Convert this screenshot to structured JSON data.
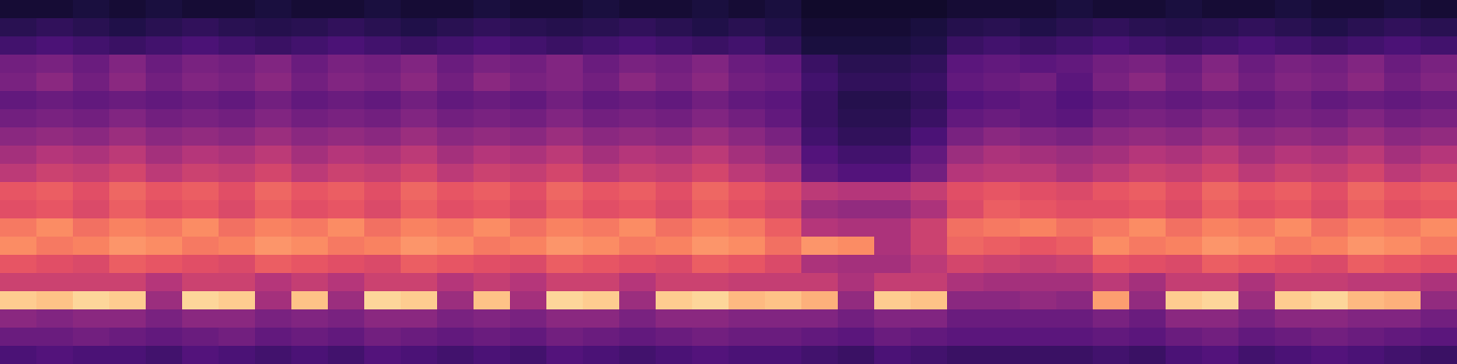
{
  "chart_data": {
    "type": "heatmap",
    "tick_labels": false,
    "value_range": [
      0,
      100
    ],
    "cells": [
      [
        10,
        10,
        12,
        10,
        12,
        10,
        10,
        12,
        10,
        10,
        12,
        10,
        10,
        12,
        10,
        10,
        12,
        10,
        10,
        12,
        10,
        12,
        8,
        8,
        8,
        8,
        10,
        10,
        10,
        12,
        10,
        10,
        12,
        10,
        10,
        12,
        10,
        10,
        12,
        10
      ],
      [
        16,
        18,
        16,
        14,
        16,
        18,
        16,
        15,
        16,
        18,
        16,
        14,
        16,
        18,
        16,
        15,
        16,
        18,
        16,
        14,
        16,
        14,
        10,
        10,
        10,
        12,
        15,
        16,
        14,
        16,
        18,
        16,
        15,
        16,
        18,
        16,
        14,
        16,
        18,
        16
      ],
      [
        22,
        24,
        22,
        20,
        22,
        24,
        22,
        20,
        22,
        24,
        22,
        20,
        22,
        24,
        22,
        20,
        22,
        24,
        22,
        20,
        22,
        18,
        12,
        12,
        12,
        14,
        20,
        22,
        20,
        22,
        24,
        22,
        20,
        22,
        24,
        22,
        20,
        22,
        24,
        22
      ],
      [
        34,
        36,
        32,
        38,
        32,
        36,
        34,
        38,
        32,
        36,
        34,
        38,
        32,
        36,
        34,
        38,
        32,
        36,
        34,
        38,
        32,
        30,
        20,
        16,
        16,
        18,
        28,
        30,
        28,
        30,
        34,
        36,
        32,
        38,
        32,
        36,
        34,
        38,
        32,
        36
      ],
      [
        36,
        40,
        34,
        40,
        34,
        38,
        36,
        40,
        34,
        38,
        36,
        40,
        34,
        40,
        36,
        38,
        34,
        40,
        36,
        40,
        34,
        32,
        22,
        18,
        18,
        20,
        30,
        32,
        34,
        28,
        36,
        40,
        34,
        40,
        34,
        38,
        36,
        40,
        34,
        38
      ],
      [
        30,
        32,
        30,
        32,
        30,
        32,
        30,
        34,
        30,
        32,
        30,
        34,
        30,
        32,
        30,
        34,
        30,
        32,
        30,
        34,
        30,
        28,
        20,
        15,
        15,
        18,
        26,
        28,
        30,
        26,
        30,
        32,
        30,
        32,
        30,
        34,
        30,
        32,
        30,
        32
      ],
      [
        34,
        36,
        34,
        38,
        34,
        36,
        34,
        38,
        34,
        36,
        34,
        38,
        34,
        36,
        34,
        38,
        34,
        36,
        34,
        38,
        34,
        30,
        20,
        16,
        16,
        20,
        30,
        32,
        30,
        28,
        34,
        36,
        34,
        38,
        34,
        36,
        34,
        38,
        34,
        36
      ],
      [
        40,
        42,
        40,
        44,
        40,
        42,
        40,
        44,
        40,
        42,
        40,
        44,
        40,
        42,
        40,
        44,
        40,
        42,
        40,
        44,
        40,
        36,
        22,
        18,
        18,
        24,
        36,
        40,
        38,
        36,
        40,
        42,
        40,
        44,
        40,
        42,
        40,
        44,
        40,
        42
      ],
      [
        46,
        50,
        48,
        52,
        46,
        50,
        48,
        52,
        46,
        50,
        48,
        52,
        46,
        50,
        48,
        52,
        46,
        50,
        48,
        52,
        46,
        42,
        26,
        22,
        22,
        30,
        44,
        48,
        46,
        44,
        46,
        50,
        48,
        52,
        46,
        50,
        48,
        52,
        46,
        50
      ],
      [
        52,
        56,
        54,
        58,
        52,
        56,
        54,
        58,
        52,
        56,
        54,
        58,
        52,
        56,
        54,
        58,
        52,
        56,
        54,
        58,
        52,
        48,
        30,
        26,
        26,
        34,
        50,
        52,
        52,
        48,
        52,
        56,
        54,
        58,
        52,
        56,
        54,
        58,
        52,
        56
      ],
      [
        64,
        66,
        62,
        68,
        64,
        66,
        62,
        68,
        64,
        66,
        62,
        68,
        64,
        66,
        62,
        68,
        64,
        66,
        62,
        68,
        64,
        60,
        52,
        50,
        50,
        54,
        62,
        64,
        62,
        60,
        64,
        66,
        62,
        68,
        64,
        66,
        62,
        68,
        64,
        66
      ],
      [
        62,
        64,
        60,
        66,
        62,
        64,
        60,
        66,
        62,
        64,
        60,
        66,
        62,
        64,
        60,
        66,
        62,
        64,
        60,
        66,
        62,
        58,
        44,
        42,
        42,
        48,
        60,
        66,
        64,
        62,
        62,
        64,
        60,
        66,
        62,
        64,
        60,
        66,
        62,
        64
      ],
      [
        72,
        76,
        70,
        74,
        72,
        76,
        70,
        74,
        72,
        76,
        70,
        74,
        72,
        76,
        70,
        74,
        72,
        76,
        70,
        74,
        72,
        66,
        50,
        48,
        48,
        56,
        70,
        72,
        74,
        70,
        72,
        76,
        70,
        74,
        72,
        76,
        70,
        74,
        72,
        76
      ],
      [
        76,
        72,
        74,
        78,
        76,
        72,
        74,
        78,
        76,
        72,
        74,
        78,
        76,
        72,
        74,
        78,
        76,
        72,
        74,
        78,
        76,
        70,
        78,
        76,
        48,
        56,
        68,
        66,
        64,
        66,
        76,
        72,
        74,
        78,
        76,
        72,
        74,
        78,
        76,
        72
      ],
      [
        64,
        62,
        60,
        66,
        64,
        62,
        60,
        66,
        64,
        62,
        60,
        66,
        64,
        62,
        60,
        66,
        64,
        62,
        60,
        66,
        64,
        60,
        48,
        46,
        46,
        52,
        58,
        56,
        54,
        56,
        64,
        62,
        60,
        66,
        64,
        62,
        60,
        66,
        64,
        62
      ],
      [
        56,
        56,
        56,
        56,
        50,
        56,
        56,
        50,
        54,
        50,
        56,
        56,
        50,
        54,
        50,
        56,
        56,
        50,
        56,
        56,
        54,
        54,
        54,
        48,
        54,
        54,
        48,
        46,
        46,
        46,
        52,
        46,
        54,
        54,
        48,
        54,
        54,
        52,
        52,
        48
      ],
      [
        90,
        88,
        92,
        90,
        44,
        92,
        90,
        46,
        88,
        44,
        92,
        90,
        44,
        88,
        46,
        92,
        90,
        44,
        90,
        92,
        86,
        88,
        84,
        42,
        90,
        88,
        40,
        40,
        42,
        40,
        80,
        42,
        90,
        92,
        44,
        90,
        92,
        86,
        84,
        42
      ],
      [
        40,
        38,
        40,
        40,
        36,
        40,
        40,
        36,
        38,
        36,
        40,
        40,
        36,
        38,
        36,
        40,
        40,
        36,
        40,
        40,
        38,
        38,
        38,
        34,
        38,
        38,
        32,
        32,
        32,
        32,
        36,
        32,
        40,
        40,
        36,
        40,
        40,
        38,
        38,
        34
      ],
      [
        32,
        32,
        34,
        32,
        30,
        32,
        34,
        30,
        32,
        30,
        34,
        32,
        30,
        32,
        30,
        34,
        32,
        30,
        32,
        34,
        32,
        32,
        30,
        28,
        32,
        30,
        28,
        28,
        28,
        28,
        30,
        28,
        32,
        34,
        30,
        32,
        34,
        32,
        30,
        28
      ],
      [
        24,
        26,
        24,
        24,
        22,
        26,
        24,
        22,
        24,
        22,
        26,
        24,
        22,
        24,
        22,
        26,
        24,
        22,
        24,
        26,
        24,
        24,
        22,
        20,
        24,
        22,
        20,
        20,
        20,
        20,
        22,
        20,
        24,
        26,
        22,
        24,
        26,
        24,
        22,
        20
      ]
    ]
  }
}
